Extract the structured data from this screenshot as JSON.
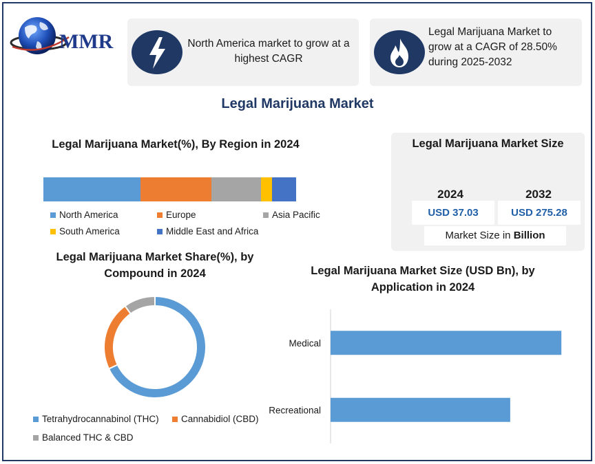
{
  "logo": {
    "text": "MMR",
    "icon": "globe-icon"
  },
  "cards": [
    {
      "icon": "lightning-bolt-icon",
      "text": "North America market to grow at a highest CAGR"
    },
    {
      "icon": "flame-icon",
      "text": "Legal Marijuana Market to grow at a CAGR of 28.50% during 2025-2032"
    }
  ],
  "main_title": "Legal Marijuana Market",
  "colors": {
    "navy": "#1f3864",
    "blue": "#5b9bd5",
    "orange": "#ed7d31",
    "gray": "#a5a5a5",
    "yellow": "#ffc000",
    "dark_blue": "#4472c4",
    "value_text": "#1f5fa8"
  },
  "market_size": {
    "title": "Legal Marijuana Market Size",
    "years": [
      {
        "year": "2024",
        "value": "USD 37.03"
      },
      {
        "year": "2032",
        "value": "USD 275.28"
      }
    ],
    "unit_prefix": "Market Size in",
    "unit_bold": "Billion"
  },
  "chart_data": [
    {
      "type": "bar",
      "stacked": true,
      "orientation": "horizontal",
      "title": "Legal Marijuana Market(%), By Region in 2024",
      "series": [
        {
          "name": "North America",
          "value": 38.5,
          "color": "#5b9bd5"
        },
        {
          "name": "Europe",
          "value": 28,
          "color": "#ed7d31"
        },
        {
          "name": "Asia Pacific",
          "value": 19.5,
          "color": "#a5a5a5"
        },
        {
          "name": "South America",
          "value": 4.5,
          "color": "#ffc000"
        },
        {
          "name": "Middle East and Africa",
          "value": 9.5,
          "color": "#4472c4"
        }
      ],
      "legend_position": "bottom"
    },
    {
      "type": "pie",
      "donut": true,
      "title": "Legal Marijuana Market Share(%), by Compound in 2024",
      "slices": [
        {
          "name": "Tetrahydrocannabinol (THC)",
          "value": 68,
          "color": "#5b9bd5"
        },
        {
          "name": "Cannabidiol (CBD)",
          "value": 22,
          "color": "#ed7d31"
        },
        {
          "name": "Balanced THC & CBD",
          "value": 10,
          "color": "#a5a5a5"
        }
      ],
      "legend_position": "bottom"
    },
    {
      "type": "bar",
      "orientation": "horizontal",
      "title": "Legal Marijuana Market Size (USD Bn), by Application in 2024",
      "categories": [
        "Medical",
        "Recreational"
      ],
      "values": [
        20.3,
        15.8
      ],
      "xlim": [
        0,
        21.5
      ],
      "color": "#5b9bd5",
      "grid": false
    }
  ]
}
